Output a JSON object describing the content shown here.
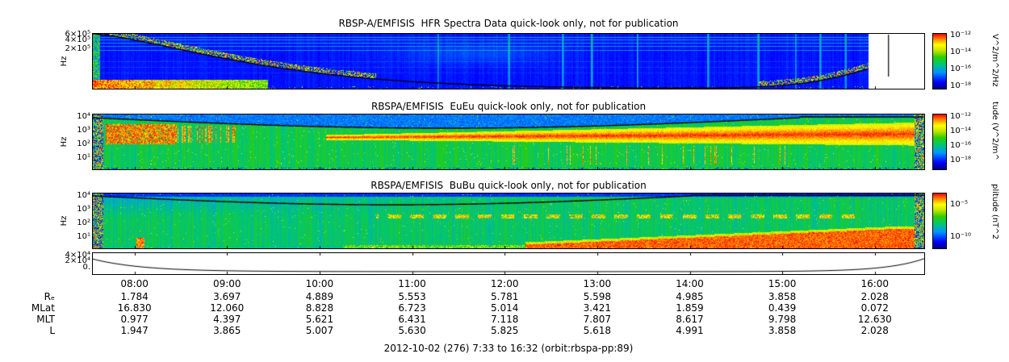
{
  "caption": "2012-10-02 (276) 7:33 to 16:32 (orbit:rbspa-pp:89)",
  "time_ticks": [
    "08:00",
    "09:00",
    "10:00",
    "11:00",
    "12:00",
    "13:00",
    "14:00",
    "15:00",
    "16:00"
  ],
  "palette": {
    "background": "#ffffff",
    "axis": "#000000",
    "rainbow_stops": [
      [
        0,
        "#000082"
      ],
      [
        0.12,
        "#0000ff"
      ],
      [
        0.3,
        "#0096ff"
      ],
      [
        0.45,
        "#00c86e"
      ],
      [
        0.58,
        "#32cd00"
      ],
      [
        0.7,
        "#c8e600"
      ],
      [
        0.8,
        "#ffff00"
      ],
      [
        0.9,
        "#ff8c00"
      ],
      [
        1,
        "#ff0000"
      ]
    ]
  },
  "chart_data": [
    {
      "type": "heatmap",
      "panel": 1,
      "title": "RBSP-A/EMFISIS  HFR Spectra Data quick-look only, not for publication",
      "ylabel": "Hz",
      "y_scale": "log",
      "y_ticks_top_to_bottom": [
        "6×10⁵",
        "4×10⁵",
        "2×10⁵"
      ],
      "x_range": [
        "07:33",
        "16:32"
      ],
      "colorbar": {
        "label": "V^2/m^2/Hz",
        "scale": "log",
        "ticks_top_to_bottom": [
          "10⁻¹²",
          "10⁻¹⁴",
          "10⁻¹⁶",
          "10⁻¹⁸"
        ]
      },
      "features": [
        "mostly low-intensity blue background with faint horizontal banding",
        "intense red/yellow band at lowest frequencies from ~07:33 to ~09:30",
        "colored emission band tracking the black fce/UHR trace that falls from top-left toward the bottom near apogee and rises near the end of the pass",
        "white data gap after ~16:05 crossed by a near-vertical black trace"
      ]
    },
    {
      "type": "heatmap",
      "panel": 2,
      "title": "RBSPA/EMFISIS  EuEu quick-look only, not for publication",
      "ylabel": "Hz",
      "y_scale": "log",
      "y_ticks_top_to_bottom": [
        "10⁴",
        "10³",
        "10²",
        "10¹"
      ],
      "x_range": [
        "07:33",
        "16:32"
      ],
      "colorbar": {
        "label": "tude (V^2/m^",
        "scale": "log",
        "ticks_top_to_bottom": [
          "10⁻¹²",
          "10⁻¹⁴",
          "10⁻¹⁶",
          "10⁻¹⁸"
        ]
      },
      "features": [
        "green mid-intensity background with vertical striations",
        "strong red patch near 10^2-10^3 Hz from ~07:45 to ~08:40",
        "broad red band near a few hundred Hz widening from ~10:00 to the end of the pass",
        "thin red vertical bursts below 10^2 Hz between ~12:00 and ~14:30",
        "black fce trace arcing just below the top edge",
        "rainbow noise columns at both edges"
      ]
    },
    {
      "type": "heatmap",
      "panel": 3,
      "title": "RBSPA/EMFISIS  BuBu quick-look only, not for publication",
      "ylabel": "Hz",
      "y_scale": "log",
      "y_ticks_top_to_bottom": [
        "10⁴",
        "10³",
        "10²",
        "10¹"
      ],
      "x_range": [
        "07:33",
        "16:32"
      ],
      "colorbar": {
        "label": "plitude (nT^2",
        "scale": "log",
        "ticks_top_to_bottom": [
          "10⁻⁵",
          "10⁻¹⁰"
        ]
      },
      "features": [
        "green/cyan background, bluer at upper left",
        "black fce trace arcing just below the top edge",
        "dashed yellow-orange band near 10^2 Hz from ~10:30 to ~15:30",
        "intense red band at lowest frequencies growing from ~12:00 to the end of the pass"
      ]
    },
    {
      "type": "line",
      "panel": 4,
      "name": "cyclotron-frequency-strip",
      "y_ticks_top_to_bottom": [
        "4×10⁴",
        "2×10⁴",
        "0."
      ],
      "x": [
        "07:33",
        "08:00",
        "09:00",
        "10:00",
        "11:00",
        "12:00",
        "13:00",
        "14:00",
        "15:00",
        "16:00",
        "16:32"
      ],
      "values_estimated": [
        18000,
        6000,
        1500,
        700,
        500,
        450,
        500,
        900,
        2500,
        7000,
        16000
      ]
    },
    {
      "type": "table",
      "name": "ephemeris",
      "columns": [
        "08:00",
        "09:00",
        "10:00",
        "11:00",
        "12:00",
        "13:00",
        "14:00",
        "15:00",
        "16:00"
      ],
      "rows": [
        {
          "label": "Rₑ",
          "values": [
            "1.784",
            "3.697",
            "4.889",
            "5.553",
            "5.781",
            "5.598",
            "4.985",
            "3.858",
            "2.028"
          ]
        },
        {
          "label": "MLat",
          "values": [
            "16.830",
            "12.060",
            "8.828",
            "6.723",
            "5.014",
            "3.421",
            "1.859",
            "0.439",
            "0.072"
          ]
        },
        {
          "label": "MLT",
          "values": [
            "0.977",
            "4.397",
            "5.621",
            "6.431",
            "7.118",
            "7.807",
            "8.617",
            "9.798",
            "12.630"
          ]
        },
        {
          "label": "L",
          "values": [
            "1.947",
            "3.865",
            "5.007",
            "5.630",
            "5.825",
            "5.618",
            "4.991",
            "3.858",
            "2.028"
          ]
        }
      ]
    }
  ]
}
